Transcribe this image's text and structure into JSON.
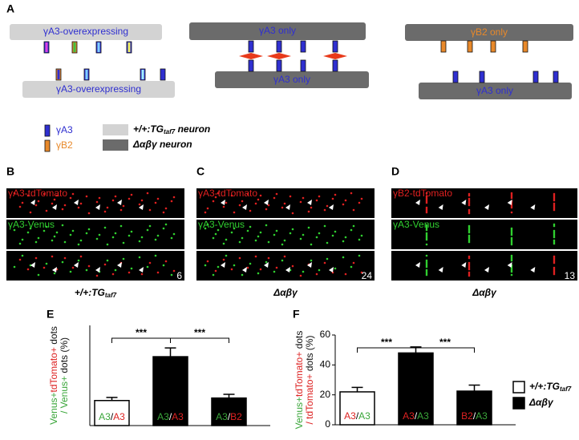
{
  "panel_labels": [
    "A",
    "B",
    "C",
    "D",
    "E",
    "F"
  ],
  "schematic": [
    {
      "top": "γA3-overexpressing",
      "bottom": "γA3-overexpressing"
    },
    {
      "top": "γA3 only",
      "bottom": "γA3 only"
    },
    {
      "top": "γB2 only",
      "bottom": "γA3 only"
    }
  ],
  "legend": {
    "markers": [
      "γA3",
      "γB2"
    ],
    "neurons": [
      {
        "main": "+/+:TG",
        "sub": "taf7",
        "rest": " neuron"
      },
      {
        "main": "Δαβγ  neuron"
      }
    ]
  },
  "images": [
    {
      "channels": [
        "γA3-tdTomato",
        "γA3-Venus"
      ],
      "number": "6",
      "genotype": {
        "main": "+/+:TG",
        "sub": "taf7"
      }
    },
    {
      "channels": [
        "γA3-tdTomato",
        "γA3-Venus"
      ],
      "number": "24",
      "genotype": {
        "main": "Δαβγ"
      }
    },
    {
      "channels": [
        "γB2-tdTomato",
        "γA3-Venus"
      ],
      "number": "13",
      "genotype": {
        "main": "Δαβγ"
      }
    }
  ],
  "chart_data": [
    {
      "type": "bar",
      "ylabel": [
        [
          {
            "text": "Venus+",
            "color": "#3aa63a"
          },
          {
            "text": "tdTomato+",
            "color": "#dd2222"
          },
          {
            "text": " dots",
            "color": "#111"
          }
        ],
        [
          {
            "text": "/ Venus+",
            "color": "#3aa63a"
          },
          {
            "text": " dots (%)",
            "color": "#111"
          }
        ]
      ],
      "categories": [
        "A3/A3",
        "A3/A3",
        "A3/B2"
      ],
      "label_colors": [
        [
          "#3aa63a",
          "#dd2222"
        ],
        [
          "#3aa63a",
          "#dd2222"
        ],
        [
          "#3aa63a",
          "#dd2222"
        ]
      ],
      "values": [
        20,
        55,
        22
      ],
      "errors": [
        2.5,
        7,
        3
      ],
      "colors": [
        "#ffffff",
        "#000000",
        "#000000"
      ],
      "ylim": [
        0,
        80
      ],
      "annotations": [
        "***",
        "***"
      ]
    },
    {
      "type": "bar",
      "ylabel": [
        [
          {
            "text": "Venus+",
            "color": "#3aa63a"
          },
          {
            "text": "tdTomato+",
            "color": "#dd2222"
          },
          {
            "text": " dots",
            "color": "#111"
          }
        ],
        [
          {
            "text": "/ tdTomato+",
            "color": "#dd2222"
          },
          {
            "text": " dots (%)",
            "color": "#111"
          }
        ]
      ],
      "categories": [
        "A3/A3",
        "A3/A3",
        "B2/A3"
      ],
      "label_colors": [
        [
          "#dd2222",
          "#3aa63a"
        ],
        [
          "#dd2222",
          "#3aa63a"
        ],
        [
          "#dd2222",
          "#3aa63a"
        ]
      ],
      "values": [
        22,
        48,
        22.5
      ],
      "errors": [
        3,
        4,
        4
      ],
      "colors": [
        "#ffffff",
        "#000000",
        "#000000"
      ],
      "ylim": [
        0,
        60
      ],
      "yticks": [
        0,
        20,
        40,
        60
      ],
      "annotations": [
        "***",
        "***"
      ],
      "legend": [
        {
          "name": "+/+:TG",
          "sub": "taf7",
          "color": "#ffffff"
        },
        {
          "name": "Δαβγ",
          "color": "#000000"
        }
      ]
    }
  ]
}
